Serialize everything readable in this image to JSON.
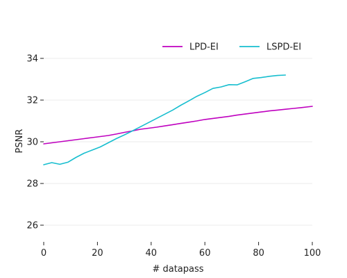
{
  "chart_data": {
    "type": "line",
    "xlabel": "# datapass",
    "ylabel": "PSNR",
    "xlim": [
      0,
      100
    ],
    "ylim": [
      25.2,
      35.2
    ],
    "x_ticks": [
      "0",
      "20",
      "40",
      "60",
      "80",
      "100"
    ],
    "y_ticks": [
      "26",
      "28",
      "30",
      "32",
      "34"
    ],
    "grid": "horizontal",
    "legend_position": "top-right",
    "series": [
      {
        "name": "LPD-EI",
        "color": "#bf00bf",
        "x": [
          0,
          3,
          6,
          9,
          12,
          15,
          18,
          21,
          24,
          27,
          30,
          33,
          36,
          39,
          42,
          45,
          48,
          51,
          54,
          57,
          60,
          63,
          66,
          69,
          72,
          75,
          78,
          81,
          84,
          87,
          90,
          93,
          96,
          100
        ],
        "y": [
          29.9,
          29.95,
          30.0,
          30.05,
          30.1,
          30.15,
          30.2,
          30.25,
          30.3,
          30.37,
          30.45,
          30.52,
          30.6,
          30.65,
          30.7,
          30.76,
          30.82,
          30.88,
          30.94,
          31.0,
          31.07,
          31.12,
          31.17,
          31.22,
          31.28,
          31.33,
          31.38,
          31.43,
          31.48,
          31.52,
          31.56,
          31.6,
          31.64,
          31.7
        ]
      },
      {
        "name": "LSPD-EI",
        "color": "#17becf",
        "x": [
          0,
          3,
          6,
          9,
          12,
          15,
          18,
          21,
          24,
          27,
          30,
          33,
          36,
          39,
          42,
          45,
          48,
          51,
          54,
          57,
          60,
          63,
          66,
          69,
          72,
          75,
          78,
          81,
          84,
          87,
          90
        ],
        "y": [
          28.9,
          29.0,
          28.92,
          29.02,
          29.25,
          29.45,
          29.6,
          29.75,
          29.95,
          30.15,
          30.33,
          30.52,
          30.72,
          30.92,
          31.12,
          31.32,
          31.52,
          31.75,
          31.96,
          32.18,
          32.36,
          32.56,
          32.63,
          32.74,
          32.73,
          32.88,
          33.04,
          33.08,
          33.14,
          33.18,
          33.2
        ]
      }
    ]
  }
}
